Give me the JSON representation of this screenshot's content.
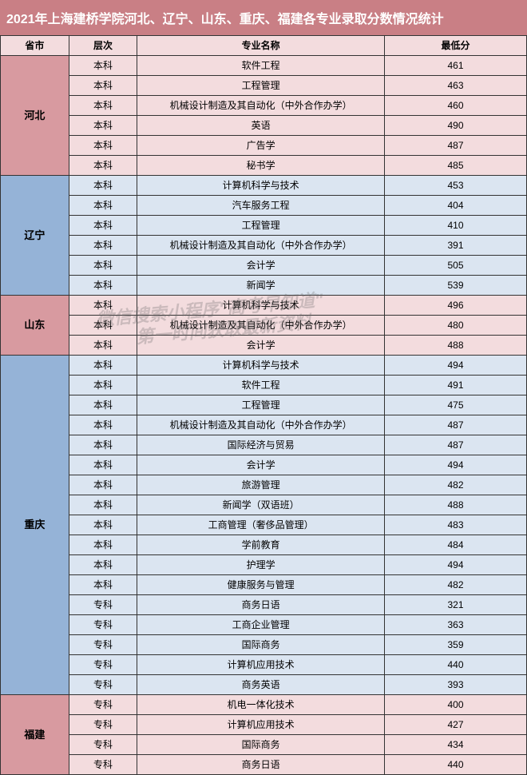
{
  "title": "2021年上海建桥学院河北、辽宁、山东、重庆、福建各专业录取分数情况统计",
  "title_bg": "#c97f85",
  "title_color": "#ffffff",
  "title_fontsize": 16,
  "header_bg": "#f3dcde",
  "columns": {
    "province": "省市",
    "level": "层次",
    "major": "专业名称",
    "score": "最低分"
  },
  "colors": {
    "pink_light": "#f3dcde",
    "pink_dark": "#d89aa0",
    "blue_light": "#dbe5f1",
    "blue_dark": "#95b3d7",
    "border": "#333333"
  },
  "watermark": {
    "line1": "微信搜索小程序\"高考早知道\"",
    "line2": "第一时间获取最新资料"
  },
  "provinces": [
    {
      "name": "河北",
      "province_bg": "#d89aa0",
      "row_bg": "#f3dcde",
      "rows": [
        {
          "level": "本科",
          "major": "软件工程",
          "score": 461
        },
        {
          "level": "本科",
          "major": "工程管理",
          "score": 463
        },
        {
          "level": "本科",
          "major": "机械设计制造及其自动化（中外合作办学）",
          "score": 460
        },
        {
          "level": "本科",
          "major": "英语",
          "score": 490
        },
        {
          "level": "本科",
          "major": "广告学",
          "score": 487
        },
        {
          "level": "本科",
          "major": "秘书学",
          "score": 485
        }
      ]
    },
    {
      "name": "辽宁",
      "province_bg": "#95b3d7",
      "row_bg": "#dbe5f1",
      "rows": [
        {
          "level": "本科",
          "major": "计算机科学与技术",
          "score": 453
        },
        {
          "level": "本科",
          "major": "汽车服务工程",
          "score": 404
        },
        {
          "level": "本科",
          "major": "工程管理",
          "score": 410
        },
        {
          "level": "本科",
          "major": "机械设计制造及其自动化（中外合作办学）",
          "score": 391
        },
        {
          "level": "本科",
          "major": "会计学",
          "score": 505
        },
        {
          "level": "本科",
          "major": "新闻学",
          "score": 539
        }
      ]
    },
    {
      "name": "山东",
      "province_bg": "#d89aa0",
      "row_bg": "#f3dcde",
      "rows": [
        {
          "level": "本科",
          "major": "计算机科学与技术",
          "score": 496
        },
        {
          "level": "本科",
          "major": "机械设计制造及其自动化（中外合作办学）",
          "score": 480
        },
        {
          "level": "本科",
          "major": "会计学",
          "score": 488
        }
      ]
    },
    {
      "name": "重庆",
      "province_bg": "#95b3d7",
      "row_bg": "#dbe5f1",
      "rows": [
        {
          "level": "本科",
          "major": "计算机科学与技术",
          "score": 494
        },
        {
          "level": "本科",
          "major": "软件工程",
          "score": 491
        },
        {
          "level": "本科",
          "major": "工程管理",
          "score": 475
        },
        {
          "level": "本科",
          "major": "机械设计制造及其自动化（中外合作办学）",
          "score": 487
        },
        {
          "level": "本科",
          "major": "国际经济与贸易",
          "score": 487
        },
        {
          "level": "本科",
          "major": "会计学",
          "score": 494
        },
        {
          "level": "本科",
          "major": "旅游管理",
          "score": 482
        },
        {
          "level": "本科",
          "major": "新闻学（双语班）",
          "score": 488
        },
        {
          "level": "本科",
          "major": "工商管理（奢侈品管理）",
          "score": 483
        },
        {
          "level": "本科",
          "major": "学前教育",
          "score": 484
        },
        {
          "level": "本科",
          "major": "护理学",
          "score": 494
        },
        {
          "level": "本科",
          "major": "健康服务与管理",
          "score": 482
        },
        {
          "level": "专科",
          "major": "商务日语",
          "score": 321
        },
        {
          "level": "专科",
          "major": "工商企业管理",
          "score": 363
        },
        {
          "level": "专科",
          "major": "国际商务",
          "score": 359
        },
        {
          "level": "专科",
          "major": "计算机应用技术",
          "score": 440
        },
        {
          "level": "专科",
          "major": "商务英语",
          "score": 393
        }
      ]
    },
    {
      "name": "福建",
      "province_bg": "#d89aa0",
      "row_bg": "#f3dcde",
      "rows": [
        {
          "level": "专科",
          "major": "机电一体化技术",
          "score": 400
        },
        {
          "level": "专科",
          "major": "计算机应用技术",
          "score": 427
        },
        {
          "level": "专科",
          "major": "国际商务",
          "score": 434
        },
        {
          "level": "专科",
          "major": "商务日语",
          "score": 440
        }
      ]
    }
  ]
}
